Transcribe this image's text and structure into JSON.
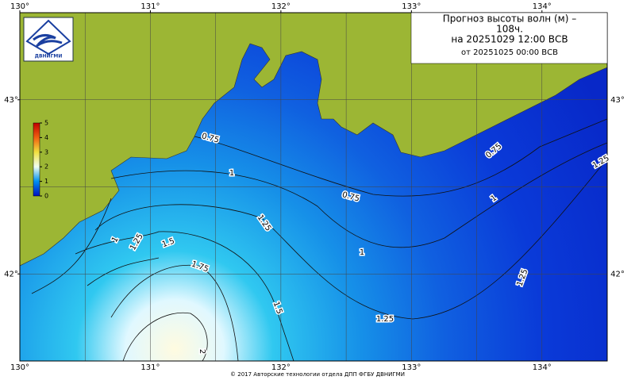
{
  "header": {
    "title_lines": [
      "Прогноз высоты волн (м) –",
      "108ч.",
      "на 20251029 12:00 ВСВ"
    ],
    "issued": "от 20251025 00:00 ВСВ"
  },
  "logo": {
    "text": "ДВНИГМИ"
  },
  "axes": {
    "lon_lim": [
      130,
      134.5
    ],
    "lat_lim": [
      41.5,
      43.5
    ],
    "lon_ticks": [
      {
        "value": 130,
        "label": "130°"
      },
      {
        "value": 131,
        "label": "131°"
      },
      {
        "value": 132,
        "label": "132°"
      },
      {
        "value": 133,
        "label": "133°"
      },
      {
        "value": 134,
        "label": "134°"
      }
    ],
    "lat_ticks": [
      {
        "value": 43,
        "label": "43°"
      },
      {
        "value": 42,
        "label": "42°"
      }
    ],
    "grid_step": 0.5
  },
  "colorbar": {
    "lim": [
      0,
      5
    ],
    "ticks": [
      0,
      1,
      2,
      3,
      4,
      5
    ]
  },
  "contour_labels": [
    "0.75",
    "0.75",
    "0.75",
    "1",
    "1",
    "1",
    "1",
    "1.25",
    "1.25",
    "1.25",
    "1.25",
    "1.25",
    "1.5",
    "1.5",
    "1.75",
    "2"
  ],
  "footer": "© 2017 Авторские технологии отдела ДПП ФГБУ ДВНИГМИ"
}
